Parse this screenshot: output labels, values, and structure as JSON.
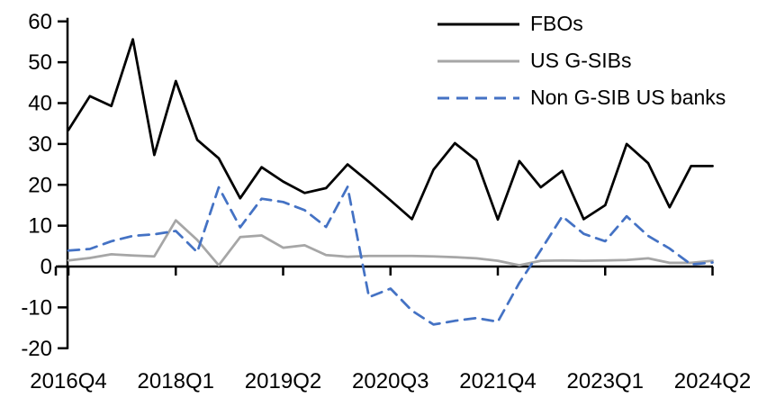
{
  "chart_data": {
    "type": "line",
    "title": "",
    "xlabel": "",
    "ylabel": "",
    "ylim": [
      -20,
      60
    ],
    "y_ticks": [
      60,
      50,
      40,
      30,
      20,
      10,
      0,
      -10,
      -20
    ],
    "x_tick_labels": [
      "2016Q4",
      "2018Q1",
      "2019Q2",
      "2020Q3",
      "2021Q4",
      "2023Q1",
      "2024Q2"
    ],
    "x_label_every": 5,
    "grid": false,
    "legend_position": "top-right",
    "categories": [
      "2016Q4",
      "2017Q1",
      "2017Q2",
      "2017Q3",
      "2017Q4",
      "2018Q1",
      "2018Q2",
      "2018Q3",
      "2018Q4",
      "2019Q1",
      "2019Q2",
      "2019Q3",
      "2019Q4",
      "2020Q1",
      "2020Q2",
      "2020Q3",
      "2020Q4",
      "2021Q1",
      "2021Q2",
      "2021Q3",
      "2021Q4",
      "2022Q1",
      "2022Q2",
      "2022Q3",
      "2022Q4",
      "2023Q1",
      "2023Q2",
      "2023Q3",
      "2023Q4",
      "2024Q1",
      "2024Q2"
    ],
    "series": [
      {
        "name": "FBOs",
        "color": "#000000",
        "style": "solid",
        "values": [
          33.4,
          41.7,
          39.3,
          55.6,
          27.3,
          45.4,
          31.0,
          26.5,
          16.7,
          24.3,
          20.8,
          18.0,
          19.2,
          25.0,
          20.7,
          16.2,
          11.6,
          23.7,
          30.2,
          26.0,
          11.5,
          25.8,
          19.4,
          23.4,
          11.6,
          15.0,
          30.0,
          25.3,
          14.5,
          24.6,
          24.6
        ]
      },
      {
        "name": "US G-SIBs",
        "color": "#a6a6a6",
        "style": "solid",
        "values": [
          1.5,
          2.1,
          3.0,
          2.7,
          2.5,
          11.3,
          6.5,
          0.3,
          7.2,
          7.6,
          4.6,
          5.2,
          2.8,
          2.4,
          2.6,
          2.6,
          2.6,
          2.5,
          2.3,
          2.0,
          1.4,
          0.3,
          1.4,
          1.5,
          1.4,
          1.5,
          1.6,
          2.0,
          0.9,
          0.9,
          1.4
        ]
      },
      {
        "name": "Non G-SIB US banks",
        "color": "#4472c4",
        "style": "dashed",
        "values": [
          3.9,
          4.3,
          6.2,
          7.5,
          7.9,
          8.7,
          3.5,
          19.4,
          9.6,
          16.6,
          15.8,
          13.8,
          9.7,
          19.5,
          -7.5,
          -5.4,
          -10.8,
          -14.2,
          -13.3,
          -12.6,
          -13.5,
          -4.0,
          4.0,
          12.3,
          8.0,
          6.2,
          12.3,
          7.5,
          4.4,
          0.5,
          1.0
        ]
      }
    ]
  },
  "legend": {
    "items": [
      {
        "label": "FBOs"
      },
      {
        "label": "US G-SIBs"
      },
      {
        "label": "Non G-SIB US banks"
      }
    ]
  }
}
